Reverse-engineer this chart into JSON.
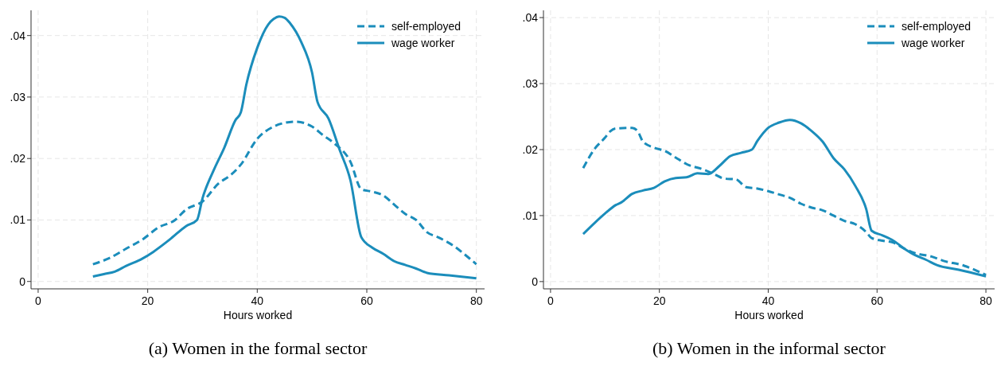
{
  "chart_data": [
    {
      "type": "line",
      "title": "(a) Women in the formal sector",
      "xlabel": "Hours worked",
      "xlim": [
        -1.3,
        81.5
      ],
      "xticks": [
        0,
        20,
        40,
        60,
        80
      ],
      "ylim": [
        -0.0012,
        0.0441
      ],
      "yticks": [
        0,
        {
          "value": 0.01,
          "label": ".01"
        },
        {
          "value": 0.02,
          "label": ".02"
        },
        {
          "value": 0.03,
          "label": ".03"
        },
        {
          "value": 0.04,
          "label": ".04"
        }
      ],
      "grid": true,
      "legend": "top right",
      "series": [
        {
          "name": "self-employed",
          "color": "#1b8dbb",
          "line_style": "dashed",
          "x": [
            10,
            13,
            16,
            19,
            22,
            25,
            27,
            30,
            33,
            35,
            37,
            40,
            43,
            45,
            47,
            50,
            52,
            54,
            57,
            59,
            61,
            63,
            65,
            67,
            69,
            71,
            73,
            76,
            78,
            80
          ],
          "values": [
            0.0028,
            0.0038,
            0.0053,
            0.0068,
            0.0088,
            0.01,
            0.0117,
            0.013,
            0.016,
            0.0172,
            0.019,
            0.0232,
            0.0252,
            0.0258,
            0.026,
            0.0252,
            0.0238,
            0.0225,
            0.0195,
            0.015,
            0.0146,
            0.014,
            0.0125,
            0.011,
            0.01,
            0.008,
            0.0072,
            0.0057,
            0.0043,
            0.0028
          ]
        },
        {
          "name": "wage worker",
          "color": "#1b8dbb",
          "line_style": "solid",
          "x": [
            10,
            12,
            14,
            16,
            19,
            21,
            24,
            27,
            29,
            30,
            32,
            34,
            36,
            37,
            38,
            40,
            42,
            43,
            44,
            45,
            46,
            48,
            50,
            51,
            53,
            55,
            57,
            59,
            61,
            63,
            65,
            67,
            69,
            71,
            75,
            80
          ],
          "values": [
            0.0008,
            0.0012,
            0.0016,
            0.0025,
            0.0037,
            0.0048,
            0.0068,
            0.009,
            0.01,
            0.0135,
            0.018,
            0.0218,
            0.0262,
            0.0275,
            0.032,
            0.038,
            0.0418,
            0.0427,
            0.0431,
            0.0429,
            0.042,
            0.039,
            0.034,
            0.0292,
            0.0265,
            0.0215,
            0.0165,
            0.0072,
            0.0055,
            0.0045,
            0.0033,
            0.0027,
            0.0021,
            0.0014,
            0.001,
            0.0005
          ]
        }
      ]
    },
    {
      "type": "line",
      "title": "(b) Women in the informal sector",
      "xlabel": "Hours worked",
      "xlim": [
        -1.3,
        81.6
      ],
      "xticks": [
        0,
        20,
        40,
        60,
        80
      ],
      "ylim": [
        -0.0011,
        0.0411
      ],
      "yticks": [
        0,
        {
          "value": 0.01,
          "label": ".01"
        },
        {
          "value": 0.02,
          "label": ".02"
        },
        {
          "value": 0.03,
          "label": ".03"
        },
        {
          "value": 0.04,
          "label": ".04"
        }
      ],
      "grid": true,
      "legend": "top right",
      "series": [
        {
          "name": "self-employed",
          "color": "#1b8dbb",
          "line_style": "dashed",
          "x": [
            6,
            8,
            10,
            11,
            12,
            15,
            16,
            17,
            19,
            21,
            23,
            25,
            28,
            30,
            32,
            34,
            36,
            38,
            40,
            42,
            44,
            46,
            48,
            50,
            52,
            54,
            56,
            58,
            59,
            61,
            63,
            65,
            67,
            70,
            72,
            76,
            80
          ],
          "values": [
            0.0172,
            0.02,
            0.0218,
            0.0228,
            0.0232,
            0.0233,
            0.0228,
            0.0212,
            0.0203,
            0.0198,
            0.0188,
            0.0178,
            0.017,
            0.0163,
            0.0156,
            0.0155,
            0.0143,
            0.0141,
            0.0137,
            0.0132,
            0.0127,
            0.0118,
            0.0112,
            0.0108,
            0.01,
            0.0092,
            0.0087,
            0.0075,
            0.0066,
            0.0062,
            0.0059,
            0.005,
            0.0043,
            0.0038,
            0.0032,
            0.0024,
            0.001
          ]
        },
        {
          "name": "wage worker",
          "color": "#1b8dbb",
          "line_style": "solid",
          "x": [
            6,
            8,
            10,
            12,
            13,
            15,
            17,
            19,
            21,
            23,
            25,
            27,
            29,
            31,
            33,
            35,
            37,
            38,
            40,
            42,
            44,
            46,
            48,
            50,
            52,
            54,
            56,
            58,
            59,
            61,
            63,
            65,
            67,
            69,
            71,
            75,
            80
          ],
          "values": [
            0.0072,
            0.0088,
            0.0103,
            0.0116,
            0.012,
            0.0133,
            0.0138,
            0.0142,
            0.0152,
            0.0157,
            0.0158,
            0.0164,
            0.0163,
            0.0175,
            0.019,
            0.0195,
            0.02,
            0.0213,
            0.0233,
            0.0241,
            0.0245,
            0.024,
            0.0228,
            0.0212,
            0.0187,
            0.017,
            0.0145,
            0.011,
            0.0077,
            0.007,
            0.0062,
            0.005,
            0.004,
            0.0033,
            0.0025,
            0.0018,
            0.0008
          ]
        }
      ]
    }
  ]
}
